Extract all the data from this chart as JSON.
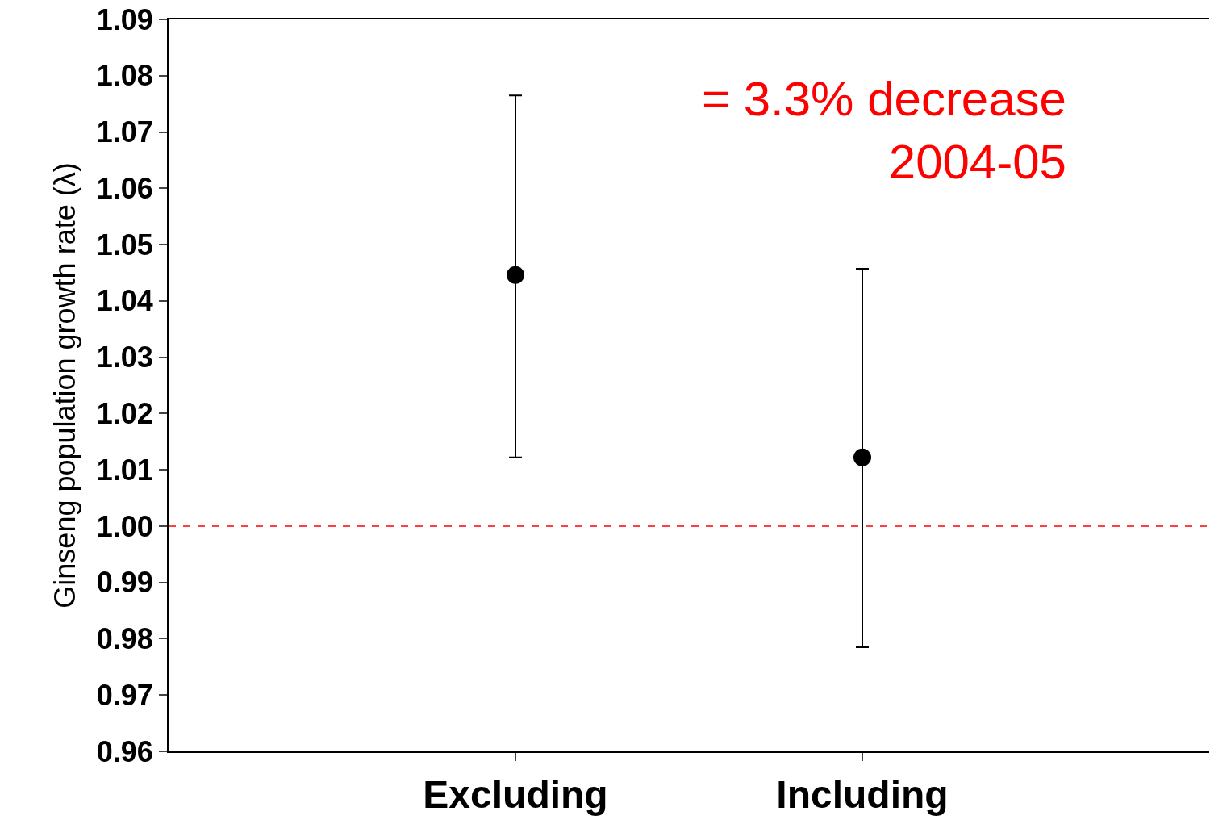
{
  "chart_data": {
    "type": "scatter",
    "ylabel": "Ginseng population growth rate (λ)",
    "categories": [
      "Excluding",
      "Including"
    ],
    "series": [
      {
        "color": "#000000",
        "values": [
          1.0446,
          1.0122
        ],
        "errors": [
          [
            1.0122,
            1.0765
          ],
          [
            0.9785,
            1.0457
          ]
        ]
      }
    ],
    "marker": "circle",
    "ylim": [
      0.96,
      1.09
    ],
    "yticks": [
      {
        "value": 0.96,
        "label": "0.96"
      },
      {
        "value": 0.97,
        "label": "0.97"
      },
      {
        "value": 0.98,
        "label": "0.98"
      },
      {
        "value": 0.99,
        "label": "0.99"
      },
      {
        "value": 1.0,
        "label": "1.00"
      },
      {
        "value": 1.01,
        "label": "1.01"
      },
      {
        "value": 1.02,
        "label": "1.02"
      },
      {
        "value": 1.03,
        "label": "1.03"
      },
      {
        "value": 1.04,
        "label": "1.04"
      },
      {
        "value": 1.05,
        "label": "1.05"
      },
      {
        "value": 1.06,
        "label": "1.06"
      },
      {
        "value": 1.07,
        "label": "1.07"
      },
      {
        "value": 1.08,
        "label": "1.08"
      },
      {
        "value": 1.09,
        "label": "1.09"
      }
    ],
    "ref_lines": [
      {
        "axis": "y",
        "value": 1.0,
        "color": "#ff0000",
        "line_style": "dashed"
      }
    ],
    "annotations": [
      "= 3.3% decrease\n2004-05"
    ]
  }
}
